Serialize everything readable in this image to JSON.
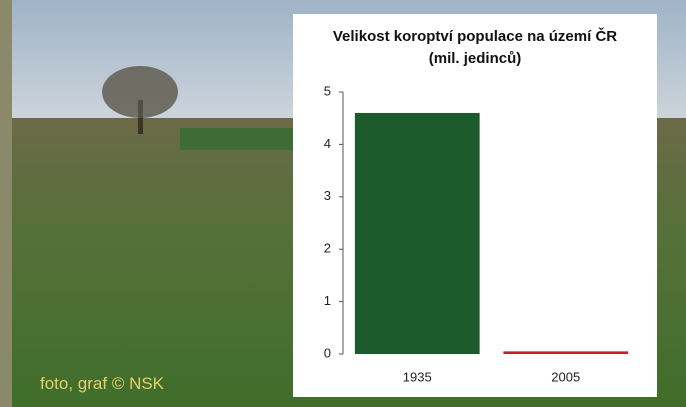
{
  "chart_data": {
    "type": "bar",
    "title": "Velikost koroptví populace na území ČR (mil. jedinců)",
    "categories": [
      "1935",
      "2005"
    ],
    "values": [
      4.6,
      0.05
    ],
    "colors": [
      "#1d5a2c",
      "#c9202e"
    ],
    "ylim": [
      0,
      5
    ],
    "yticks": [
      0,
      1,
      2,
      3,
      4,
      5
    ],
    "grid": false
  },
  "credit": "foto, graf © NSK"
}
